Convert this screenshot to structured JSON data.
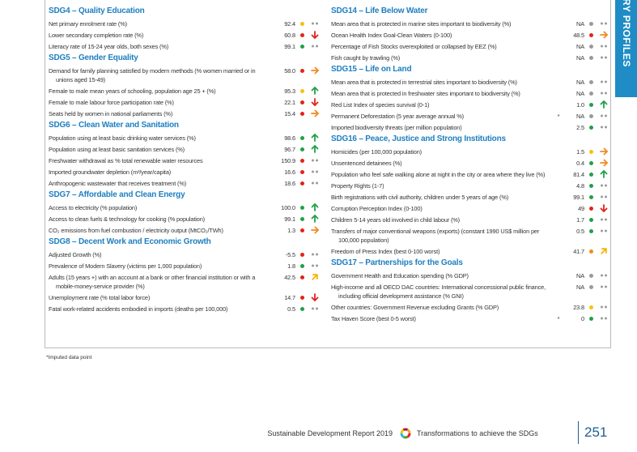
{
  "tab": "RY PROFILES",
  "columns": [
    {
      "sections": [
        {
          "title": "SDG4 – Quality Education",
          "rows": [
            {
              "label": "Net primary enrolment rate (%)",
              "value": "92.4",
              "dot": "yellow",
              "trend": "none"
            },
            {
              "label": "Lower secondary completion rate (%)",
              "value": "60.8",
              "dot": "red",
              "trend": "down"
            },
            {
              "label": "Literacy rate of 15-24 year olds, both sexes (%)",
              "value": "99.1",
              "dot": "green",
              "trend": "none"
            }
          ]
        },
        {
          "title": "SDG5 – Gender Equality",
          "rows": [
            {
              "label": "Demand for family planning satisfied by modern methods (% women married or in unions aged 15-49)",
              "value": "58.0",
              "dot": "red",
              "trend": "right"
            },
            {
              "label": "Female to male mean years of schooling, population age 25 + (%)",
              "value": "95.3",
              "dot": "yellow",
              "trend": "up"
            },
            {
              "label": "Female to male labour force participation rate (%)",
              "value": "22.1",
              "dot": "red",
              "trend": "down"
            },
            {
              "label": "Seats held by women in national parliaments (%)",
              "value": "15.4",
              "dot": "red",
              "trend": "right"
            }
          ]
        },
        {
          "title": "SDG6 – Clean Water and Sanitation",
          "rows": [
            {
              "label": "Population using at least basic drinking water services (%)",
              "value": "98.6",
              "dot": "green",
              "trend": "up"
            },
            {
              "label": "Population using at least basic sanitation services (%)",
              "value": "96.7",
              "dot": "green",
              "trend": "up"
            },
            {
              "label": "Freshwater withdrawal as % total renewable water resources",
              "value": "150.9",
              "dot": "red",
              "trend": "none"
            },
            {
              "label": "Imported groundwater depletion (m³/year/capita)",
              "value": "16.6",
              "dot": "red",
              "trend": "none"
            },
            {
              "label": "Anthropogenic wastewater that receives treatment (%)",
              "value": "18.6",
              "dot": "red",
              "trend": "none"
            }
          ]
        },
        {
          "title": "SDG7 – Affordable and Clean Energy",
          "rows": [
            {
              "label": "Access to electricity (% population)",
              "value": "100.0",
              "dot": "green",
              "trend": "up"
            },
            {
              "label": "Access to clean fuels & technology for cooking (% population)",
              "value": "99.1",
              "dot": "green",
              "trend": "up"
            },
            {
              "label": "CO₂ emissions from fuel combustion / electricity output (MtCO₂/TWh)",
              "value": "1.3",
              "dot": "red",
              "trend": "right"
            }
          ]
        },
        {
          "title": "SDG8 – Decent Work and Economic Growth",
          "rows": [
            {
              "label": "Adjusted Growth (%)",
              "value": "-5.5",
              "dot": "red",
              "trend": "none"
            },
            {
              "label": "Prevalence of Modern Slavery (victims per 1,000 population)",
              "value": "1.8",
              "dot": "green",
              "trend": "none"
            },
            {
              "label": "Adults (15 years +) with an account at a bank or other financial institution or with a mobile-money-service provider (%)",
              "value": "42.5",
              "dot": "red",
              "trend": "upright"
            },
            {
              "label": "Unemployment rate (% total labor force)",
              "value": "14.7",
              "dot": "red",
              "trend": "down"
            },
            {
              "label": "Fatal work-related accidents embodied in imports (deaths per 100,000)",
              "value": "0.5",
              "dot": "green",
              "trend": "none"
            }
          ]
        }
      ]
    },
    {
      "sections": [
        {
          "title": "SDG14 – Life Below Water",
          "rows": [
            {
              "label": "Mean area that is protected in marine sites important to biodiversity (%)",
              "value": "NA",
              "dot": "grey",
              "trend": "none"
            },
            {
              "label": "Ocean Health Index Goal-Clean Waters (0-100)",
              "value": "48.5",
              "dot": "red",
              "trend": "right"
            },
            {
              "label": "Percentage of Fish Stocks overexploited or collapsed by EEZ (%)",
              "value": "NA",
              "dot": "grey",
              "trend": "none"
            },
            {
              "label": "Fish caught by trawling (%)",
              "value": "NA",
              "dot": "grey",
              "trend": "none"
            }
          ]
        },
        {
          "title": "SDG15 – Life on Land",
          "rows": [
            {
              "label": "Mean area that is protected in terrestrial sites important to biodiversity (%)",
              "value": "NA",
              "dot": "grey",
              "trend": "none"
            },
            {
              "label": "Mean area that is protected in freshwater sites important to biodiversity (%)",
              "value": "NA",
              "dot": "grey",
              "trend": "none"
            },
            {
              "label": "Red List Index of species survival (0-1)",
              "value": "1.0",
              "dot": "green",
              "trend": "up"
            },
            {
              "label": "Permanent Deforestation (5 year average annual %)",
              "marker": "*",
              "value": "NA",
              "dot": "grey",
              "trend": "none"
            },
            {
              "label": "Imported biodiversity threats (per million population)",
              "value": "2.5",
              "dot": "green",
              "trend": "none"
            }
          ]
        },
        {
          "title": "SDG16 – Peace, Justice and Strong Institutions",
          "rows": [
            {
              "label": "Homicides (per 100,000 population)",
              "value": "1.5",
              "dot": "yellow",
              "trend": "right"
            },
            {
              "label": "Unsentenced detainees (%)",
              "value": "0.4",
              "dot": "green",
              "trend": "right"
            },
            {
              "label": "Population who feel safe walking alone at night in the city or area where they live (%)",
              "value": "81.4",
              "dot": "green",
              "trend": "up"
            },
            {
              "label": "Property Rights (1-7)",
              "value": "4.8",
              "dot": "green",
              "trend": "none"
            },
            {
              "label": "Birth registrations with civil authority, children under 5 years of age (%)",
              "value": "99.1",
              "dot": "green",
              "trend": "none"
            },
            {
              "label": "Corruption Perception Index (0-100)",
              "value": "49",
              "dot": "red",
              "trend": "down"
            },
            {
              "label": "Children 5-14 years old involved in child labour (%)",
              "value": "1.7",
              "dot": "green",
              "trend": "none"
            },
            {
              "label": "Transfers of major conventional weapons (exports) (constant 1990 US$ million per 100,000 population)",
              "value": "0.5",
              "dot": "green",
              "trend": "none"
            },
            {
              "label": "Freedom of Press Index (best 0-100 worst)",
              "value": "41.7",
              "dot": "orange",
              "trend": "upright"
            }
          ]
        },
        {
          "title": "SDG17 – Partnerships for the Goals",
          "rows": [
            {
              "label": "Government Health and Education spending (% GDP)",
              "value": "NA",
              "dot": "grey",
              "trend": "none"
            },
            {
              "label": "High-income and all OECD DAC countries: International concessional public finance, including official development assistance (% GNI)",
              "value": "NA",
              "dot": "grey",
              "trend": "none"
            },
            {
              "label": "Other countries: Government Revenue excluding Grants (% GDP)",
              "value": "23.8",
              "dot": "yellow",
              "trend": "none"
            },
            {
              "label": "Tax Haven Score (best 0-5 worst)",
              "marker": "*",
              "value": "0",
              "dot": "green",
              "trend": "none"
            }
          ]
        }
      ]
    }
  ],
  "footnote": "*Imputed data point",
  "footer": {
    "report": "Sustainable Development Report 2019",
    "subtitle": "Transformations to achieve the SDGs",
    "page": "251"
  }
}
